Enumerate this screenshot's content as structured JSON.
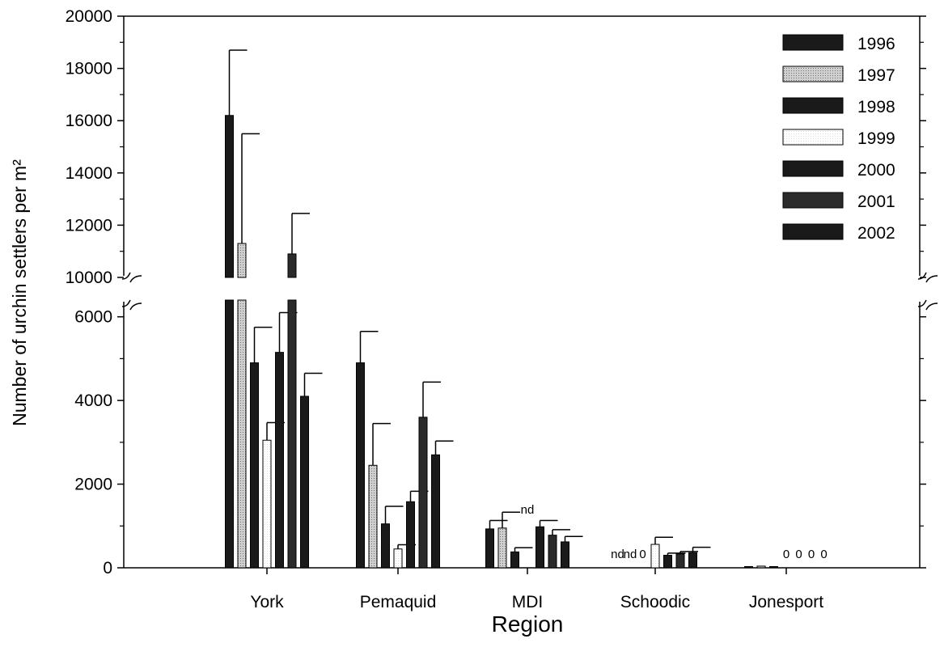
{
  "chart_data": {
    "type": "bar",
    "xlabel": "Region",
    "ylabel": "Number of urchin settlers per m²",
    "y_axis_break": {
      "lower_range": [
        0,
        6400
      ],
      "upper_range": [
        10000,
        20000
      ]
    },
    "yticks_lower": [
      0,
      2000,
      4000,
      6000
    ],
    "yticks_upper": [
      10000,
      12000,
      14000,
      16000,
      18000,
      20000
    ],
    "categories": [
      "York",
      "Pemaquid",
      "MDI",
      "Schoodic",
      "Jonesport"
    ],
    "legend_position": "top-right",
    "grid": false,
    "series": [
      {
        "name": "1996",
        "color": "#1a1a1a",
        "pattern": "solid",
        "values": [
          16200,
          4900,
          930,
          null,
          30
        ],
        "errors": [
          2500,
          750,
          200,
          null,
          0
        ]
      },
      {
        "name": "1997",
        "color": "#bdbdbd",
        "pattern": "dots",
        "values": [
          11300,
          2450,
          950,
          null,
          40
        ],
        "errors": [
          4200,
          1000,
          380,
          null,
          0
        ]
      },
      {
        "name": "1998",
        "color": "#1a1a1a",
        "pattern": "solid",
        "values": [
          4900,
          1050,
          380,
          0,
          30
        ],
        "errors": [
          850,
          420,
          100,
          0,
          0
        ]
      },
      {
        "name": "1999",
        "color": "#ffffff",
        "pattern": "open",
        "values": [
          3050,
          450,
          null,
          560,
          0
        ],
        "errors": [
          420,
          100,
          null,
          170,
          0
        ]
      },
      {
        "name": "2000",
        "color": "#1a1a1a",
        "pattern": "solid",
        "values": [
          5150,
          1580,
          980,
          300,
          0
        ],
        "errors": [
          950,
          250,
          150,
          50,
          0
        ]
      },
      {
        "name": "2001",
        "color": "#2b2b2b",
        "pattern": "solid",
        "values": [
          10900,
          3600,
          780,
          330,
          0
        ],
        "errors": [
          1550,
          840,
          130,
          60,
          0
        ]
      },
      {
        "name": "2002",
        "color": "#1a1a1a",
        "pattern": "solid",
        "values": [
          4100,
          2700,
          620,
          360,
          0
        ],
        "errors": [
          550,
          330,
          130,
          130,
          0
        ]
      }
    ],
    "annotations": [
      {
        "category": "MDI",
        "series": "1999",
        "text": "nd"
      },
      {
        "category": "Schoodic",
        "series": "1996",
        "text": "nd"
      },
      {
        "category": "Schoodic",
        "series": "1997",
        "text": "nd"
      },
      {
        "category": "Schoodic",
        "series": "1998",
        "text": "0"
      },
      {
        "category": "Jonesport",
        "series": "1999",
        "text": "0"
      },
      {
        "category": "Jonesport",
        "series": "2000",
        "text": "0"
      },
      {
        "category": "Jonesport",
        "series": "2001",
        "text": "0"
      },
      {
        "category": "Jonesport",
        "series": "2002",
        "text": "0"
      }
    ]
  }
}
